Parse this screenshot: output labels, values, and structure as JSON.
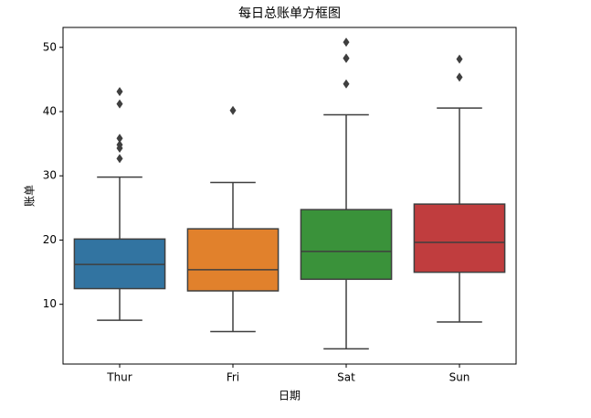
{
  "chart_data": {
    "type": "box",
    "title": "每日总账单方框图",
    "xlabel": "日期",
    "ylabel": "账单",
    "categories": [
      "Thur",
      "Fri",
      "Sat",
      "Sun"
    ],
    "colors": [
      "#3274a1",
      "#e1812c",
      "#3a923a",
      "#c03d3e"
    ],
    "boxes": [
      {
        "whislo": 7.51,
        "q1": 12.44,
        "med": 16.2,
        "q3": 20.16,
        "whishi": 29.8,
        "fliers": [
          43.11,
          41.19,
          35.83,
          34.83,
          34.3,
          32.68
        ]
      },
      {
        "whislo": 5.75,
        "q1": 12.09,
        "med": 15.38,
        "q3": 21.75,
        "whishi": 28.97,
        "fliers": [
          40.17
        ]
      },
      {
        "whislo": 3.07,
        "q1": 13.9,
        "med": 18.24,
        "q3": 24.74,
        "whishi": 39.5,
        "fliers": [
          50.81,
          48.33,
          48.27,
          44.3
        ]
      },
      {
        "whislo": 7.25,
        "q1": 14.99,
        "med": 19.63,
        "q3": 25.6,
        "whishi": 40.55,
        "fliers": [
          48.17,
          45.35
        ]
      }
    ],
    "ylim": [
      0.7,
      53.1
    ],
    "yticks": [
      10,
      20,
      30,
      40,
      50
    ]
  }
}
